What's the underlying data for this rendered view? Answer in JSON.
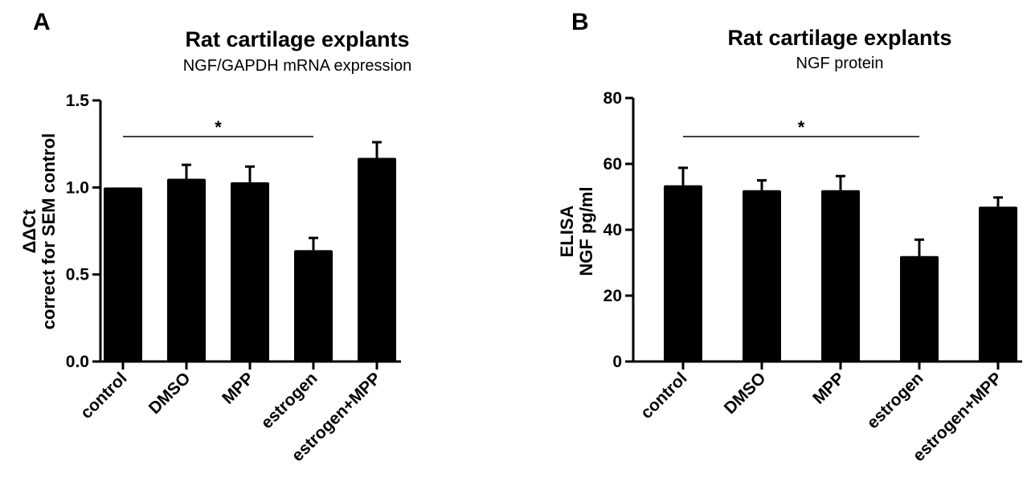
{
  "chart_data": [
    {
      "panel": "A",
      "type": "bar",
      "title": "Rat cartilage explants",
      "subtitle": "NGF/GAPDH mRNA expression",
      "ylabel_lines": [
        "ΔΔCt",
        "correct for SEM control"
      ],
      "categories": [
        "control",
        "DMSO",
        "MPP",
        "estrogen",
        "estrogen+MPP"
      ],
      "values": [
        1.0,
        1.05,
        1.03,
        0.64,
        1.17
      ],
      "errors": [
        0.0,
        0.08,
        0.09,
        0.07,
        0.09
      ],
      "ylim": [
        0,
        1.5
      ],
      "yticks": [
        0.0,
        0.5,
        1.0,
        1.5
      ],
      "ytick_labels": [
        "0.0",
        "0.5",
        "1.0",
        "1.5"
      ],
      "significance": {
        "from": "control",
        "to": "estrogen",
        "label": "*"
      },
      "bar_color": "#000000"
    },
    {
      "panel": "B",
      "type": "bar",
      "title": "Rat cartilage explants",
      "subtitle": "NGF protein",
      "ylabel_lines": [
        "ELISA",
        "NGF pg/ml"
      ],
      "categories": [
        "control",
        "DMSO",
        "MPP",
        "estrogen",
        "estrogen+MPP"
      ],
      "values": [
        53.5,
        52.0,
        52.0,
        32.0,
        47.0
      ],
      "errors": [
        5.3,
        3.0,
        4.3,
        5.0,
        2.8
      ],
      "ylim": [
        0,
        80
      ],
      "yticks": [
        0,
        20,
        40,
        60,
        80
      ],
      "ytick_labels": [
        "0",
        "20",
        "40",
        "60",
        "80"
      ],
      "significance": {
        "from": "control",
        "to": "estrogen",
        "label": "*"
      },
      "bar_color": "#000000"
    }
  ]
}
